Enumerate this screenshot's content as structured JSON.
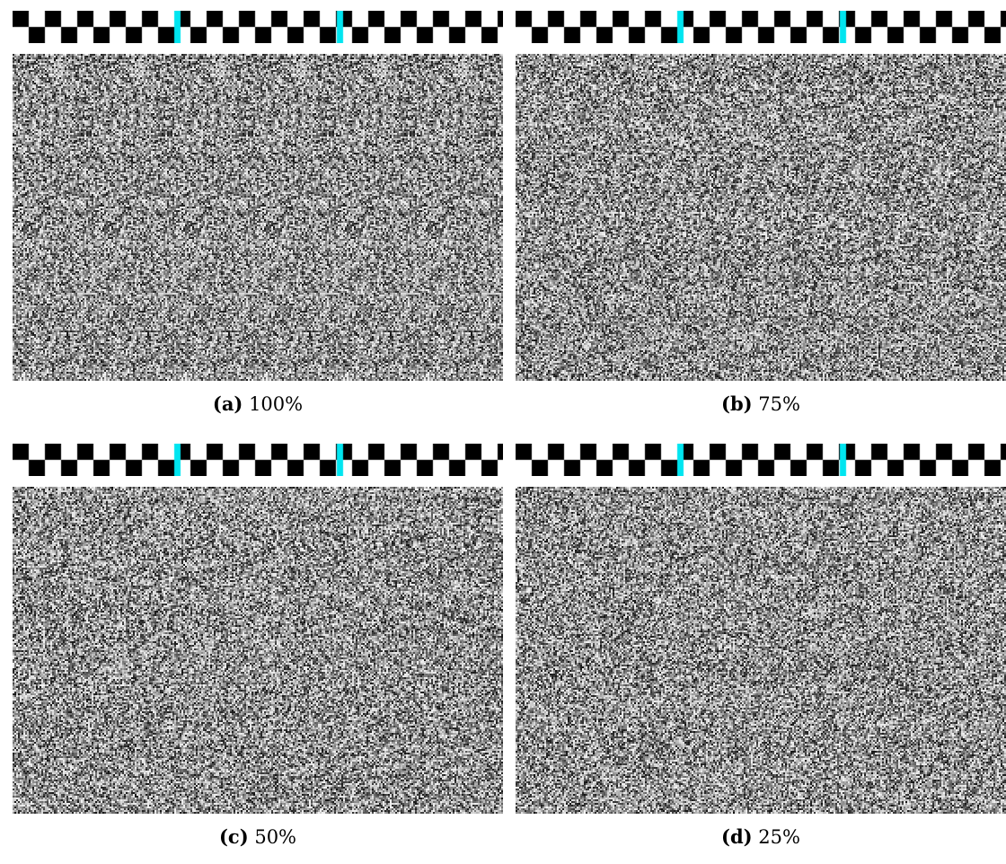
{
  "figure": {
    "panels": [
      {
        "label": "(a)",
        "value": "100%",
        "repeat_strength": 1.0
      },
      {
        "label": "(b)",
        "value": "75%",
        "repeat_strength": 0.75
      },
      {
        "label": "(c)",
        "value": "50%",
        "repeat_strength": 0.5
      },
      {
        "label": "(d)",
        "value": "25%",
        "repeat_strength": 0.25
      }
    ],
    "strip": {
      "checker_color": "#000000",
      "background_color": "#ffffff",
      "marker_color": "#00e5f0"
    },
    "noise": {
      "dark_color": "#101010",
      "light_color": "#f4f4f4"
    }
  }
}
